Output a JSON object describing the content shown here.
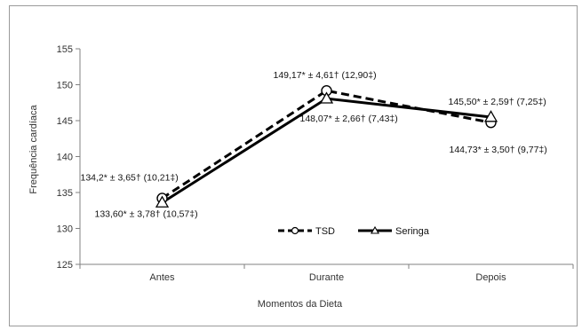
{
  "chart_data": {
    "type": "line",
    "xlabel": "Momentos da Dieta",
    "ylabel": "Frequência cardíaca",
    "categories": [
      "Antes",
      "Durante",
      "Depois"
    ],
    "ylim": [
      125,
      155
    ],
    "yticks": [
      125,
      130,
      135,
      140,
      145,
      150,
      155
    ],
    "grid": false,
    "legend_position": "bottom-center",
    "series": [
      {
        "name": "TSD",
        "values": [
          134.2,
          149.17,
          144.73
        ],
        "line_style": "dashed",
        "marker": "circle",
        "color": "#000000",
        "labels": [
          "134,2* ± 3,65† (10,21‡)",
          "149,17* ± 4,61† (12,90‡)",
          "144,73* ± 3,50† (9,77‡)"
        ]
      },
      {
        "name": "Seringa",
        "values": [
          133.6,
          148.07,
          145.5
        ],
        "line_style": "solid",
        "marker": "triangle",
        "color": "#000000",
        "labels": [
          "133,60* ± 3,78† (10,57‡)",
          "148,07* ± 2,66† (7,43‡)",
          "145,50* ± 2,59† (7,25‡)"
        ]
      }
    ]
  }
}
